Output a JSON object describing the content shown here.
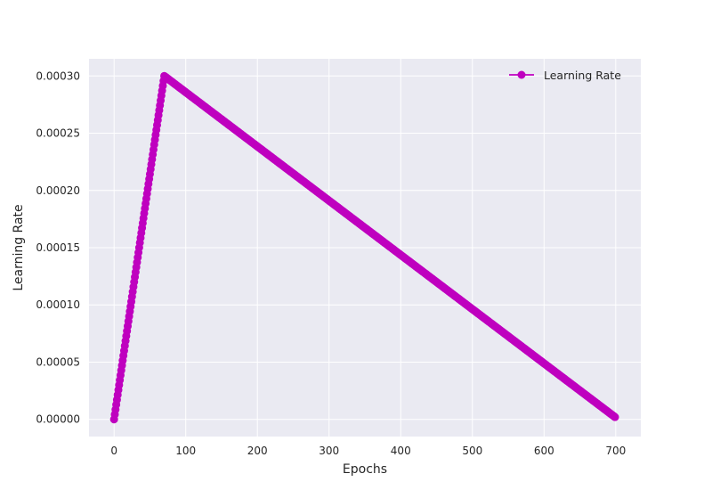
{
  "chart_data": {
    "type": "line",
    "title": "",
    "xlabel": "Epochs",
    "ylabel": "Learning Rate",
    "xlim": [
      -35,
      735
    ],
    "ylim": [
      -1.5e-05,
      0.000315
    ],
    "xticks": [
      0,
      100,
      200,
      300,
      400,
      500,
      600,
      700
    ],
    "xtick_labels": [
      "0",
      "100",
      "200",
      "300",
      "400",
      "500",
      "600",
      "700"
    ],
    "yticks": [
      0,
      5e-05,
      0.0001,
      0.00015,
      0.0002,
      0.00025,
      0.0003
    ],
    "ytick_labels": [
      "0.00000",
      "0.00005",
      "0.00010",
      "0.00015",
      "0.00020",
      "0.00025",
      "0.00030"
    ],
    "grid": true,
    "legend_position": "top-right",
    "marker": "circle",
    "series": [
      {
        "name": "Learning Rate",
        "color": "#bf00bf",
        "schedule": "one-cycle linear warmup then linear decay",
        "x_start": 0,
        "x_peak": 70,
        "x_end": 699,
        "y_start": 0,
        "y_peak": 0.0003,
        "y_end": 2e-06
      }
    ]
  }
}
